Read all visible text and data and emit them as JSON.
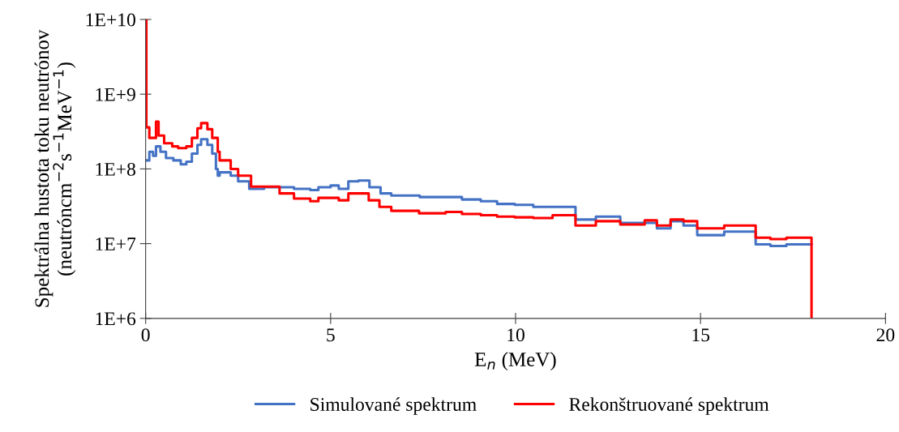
{
  "chart_data": {
    "type": "step",
    "xlabel": "E$_{n}$ (MeV)",
    "ylabel": "Spektrálna hustota toku neutrónov\n(neutróncm$^{−2}$s$^{−1}$MeV$^{−1}$)",
    "log": "y",
    "xlim": [
      0,
      20
    ],
    "xticks": [
      0,
      5,
      10,
      15,
      20
    ],
    "ylim": [
      1000000,
      10000000000
    ],
    "yticks": [
      {
        "value": 1000000,
        "label": "1E+6"
      },
      {
        "value": 10000000,
        "label": "1E+7"
      },
      {
        "value": 100000000,
        "label": "1E+8"
      },
      {
        "value": 1000000000,
        "label": "1E+9"
      },
      {
        "value": 10000000000,
        "label": "1E+10"
      }
    ],
    "grid": false,
    "legend": "bottom",
    "line_style": "solid",
    "marker": "none",
    "series": [
      {
        "name": "Simulované spektrum",
        "color": "#4472c4",
        "x": [
          0,
          0.1,
          0.2,
          0.28,
          0.4,
          0.55,
          0.75,
          0.95,
          1.1,
          1.25,
          1.4,
          1.5,
          1.67,
          1.8,
          1.9,
          1.95,
          2.0,
          2.3,
          2.5,
          2.8,
          3.2,
          4.01,
          4.45,
          4.67,
          5.0,
          5.22,
          5.48,
          5.75,
          6.05,
          6.35,
          6.64,
          7.41,
          8.55,
          9.06,
          9.5,
          9.98,
          10.48,
          11.0,
          11.62,
          12.17,
          12.83,
          13.49,
          13.82,
          14.19,
          14.54,
          14.91,
          15.64,
          16.49,
          16.89,
          17.32,
          18
        ],
        "values": [
          130000000,
          170000000,
          150000000,
          200000000,
          170000000,
          140000000,
          130000000,
          115000000,
          125000000,
          160000000,
          210000000,
          250000000,
          210000000,
          160000000,
          100000000,
          81000000,
          90000000,
          81000000,
          68000000,
          54000000,
          57000000,
          54000000,
          52000000,
          57000000,
          60000000,
          54000000,
          68000000,
          70000000,
          57000000,
          47000000,
          44000000,
          42000000,
          39000000,
          37000000,
          34000000,
          33000000,
          31000000,
          31000000,
          21000000,
          23000000,
          19000000,
          19000000,
          16000000,
          20000000,
          17500000,
          13000000,
          14500000,
          9800000,
          9300000,
          9800000,
          9800000
        ]
      },
      {
        "name": "Rekonštruované spektrum",
        "color": "#ff0000",
        "x": [
          0,
          0.02,
          0.1,
          0.28,
          0.35,
          0.5,
          0.72,
          0.88,
          1.1,
          1.25,
          1.4,
          1.5,
          1.67,
          1.8,
          1.95,
          2.0,
          2.3,
          2.5,
          2.85,
          3.62,
          4.01,
          4.45,
          4.67,
          5.22,
          5.48,
          6.03,
          6.32,
          6.64,
          7.39,
          8.11,
          8.55,
          9.06,
          9.5,
          9.98,
          10.48,
          11.0,
          11.62,
          12.17,
          12.83,
          13.49,
          13.82,
          14.19,
          14.54,
          14.91,
          15.64,
          16.49,
          16.89,
          17.32,
          18
        ],
        "values": [
          10000000000,
          360000000,
          260000000,
          430000000,
          280000000,
          220000000,
          200000000,
          190000000,
          200000000,
          260000000,
          350000000,
          410000000,
          340000000,
          260000000,
          170000000,
          130000000,
          100000000,
          81000000,
          58000000,
          47000000,
          40000000,
          37000000,
          41000000,
          38000000,
          47000000,
          38000000,
          31000000,
          27500000,
          25500000,
          26500000,
          25000000,
          24000000,
          23000000,
          22500000,
          22000000,
          24000000,
          17500000,
          20000000,
          18000000,
          20500000,
          17500000,
          21000000,
          20000000,
          16000000,
          17500000,
          12000000,
          11500000,
          12000000,
          1000000
        ]
      }
    ]
  }
}
